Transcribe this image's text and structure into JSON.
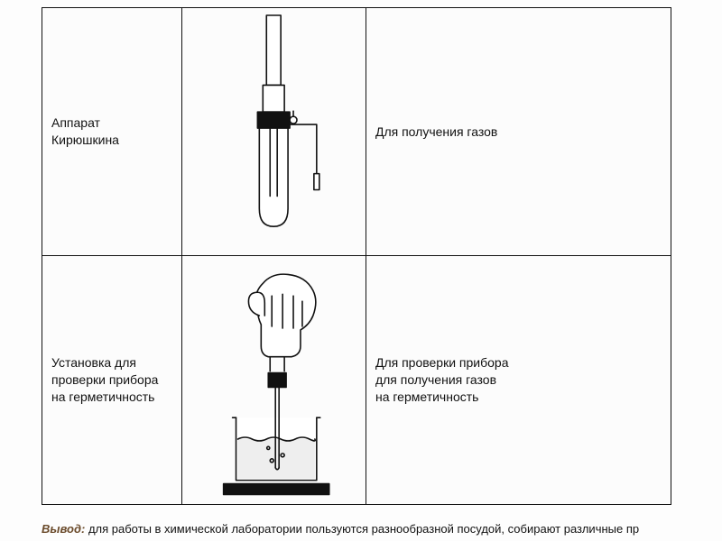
{
  "grid": {
    "border_color": "#111111",
    "background": "#fcfcfc",
    "rows": [
      {
        "left_label": "Аппарат\nКирюшкина",
        "right_label": "Для получения газов",
        "diagram": {
          "type": "infographic",
          "stroke": "#111111",
          "fill_bg": "#ffffff",
          "line_width": 1.6
        }
      },
      {
        "left_label": "Установка для\nпроверки прибора\nна герметичность",
        "right_label": "Для проверки прибора\nдля получения газов\nна герметичность",
        "diagram": {
          "type": "infographic",
          "stroke": "#111111",
          "fill_bg": "#ffffff",
          "water_fill": "#eeeeee",
          "line_width": 1.6
        }
      }
    ]
  },
  "conclusion": {
    "prefix": "Вывод:",
    "text": " для работы в химической лаборатории пользуются разнообразной посудой, собирают различные пр",
    "prefix_color": "#6a4a2a",
    "fontsize": 13
  }
}
